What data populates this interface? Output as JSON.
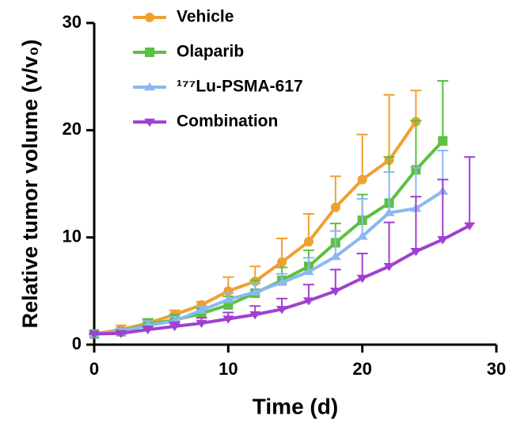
{
  "chart_data": {
    "type": "line",
    "xlabel": "Time (d)",
    "ylabel": "Relative tumor volume (v/v₀)",
    "xlim": [
      0,
      30
    ],
    "xticks": [
      0,
      10,
      20,
      30
    ],
    "ylim": [
      0,
      30
    ],
    "yticks": [
      0,
      10,
      20,
      30
    ],
    "legend": "upper left",
    "series": [
      {
        "name": "Vehicle",
        "color": "#f0a030",
        "marker": "circle",
        "x": [
          0,
          2,
          4,
          6,
          8,
          10,
          12,
          14,
          16,
          18,
          20,
          22,
          24
        ],
        "values": [
          1,
          1.4,
          2.0,
          2.8,
          3.7,
          5.0,
          5.9,
          7.7,
          9.6,
          12.8,
          15.4,
          17.2,
          20.8
        ],
        "errors": [
          0,
          0.4,
          0.4,
          0.4,
          0.3,
          1.3,
          1.4,
          2.2,
          2.6,
          2.9,
          4.2,
          6.1,
          2.9
        ]
      },
      {
        "name": "Olaparib",
        "color": "#5cc040",
        "marker": "square",
        "x": [
          0,
          2,
          4,
          6,
          8,
          10,
          12,
          14,
          16,
          18,
          20,
          22,
          24,
          26
        ],
        "values": [
          1,
          1.2,
          1.9,
          2.3,
          2.9,
          3.7,
          4.8,
          6.0,
          7.3,
          9.5,
          11.6,
          13.2,
          16.3,
          19.0
        ],
        "errors": [
          0,
          0.3,
          0.5,
          0.5,
          0.5,
          0.8,
          1.2,
          1.2,
          1.5,
          1.8,
          2.4,
          4.3,
          4.6,
          5.6
        ]
      },
      {
        "name": "¹⁷⁷Lu-PSMA-617",
        "color": "#8ab8f0",
        "marker": "triangle",
        "x": [
          0,
          2,
          4,
          6,
          8,
          10,
          12,
          14,
          16,
          18,
          20,
          22,
          24,
          26
        ],
        "values": [
          1,
          1.2,
          1.8,
          2.2,
          3.2,
          4.2,
          4.9,
          5.8,
          6.8,
          8.2,
          10.1,
          12.3,
          12.7,
          14.3
        ],
        "errors": [
          0,
          0.3,
          0.4,
          0.4,
          0.4,
          0.6,
          0.8,
          0.8,
          1.3,
          2.4,
          3.5,
          3.8,
          3.8,
          3.8
        ]
      },
      {
        "name": "Combination",
        "color": "#a040d0",
        "marker": "down-triangle",
        "x": [
          0,
          2,
          4,
          6,
          8,
          10,
          12,
          14,
          16,
          18,
          20,
          22,
          24,
          26,
          28
        ],
        "values": [
          1,
          1.05,
          1.4,
          1.7,
          2.0,
          2.4,
          2.8,
          3.3,
          4.1,
          5.0,
          6.2,
          7.3,
          8.7,
          9.8,
          11.1
        ],
        "errors": [
          0,
          0.2,
          0.3,
          0.4,
          0.5,
          0.6,
          0.8,
          1.0,
          1.5,
          2.0,
          2.3,
          4.1,
          5.1,
          5.6,
          6.4
        ]
      }
    ]
  }
}
